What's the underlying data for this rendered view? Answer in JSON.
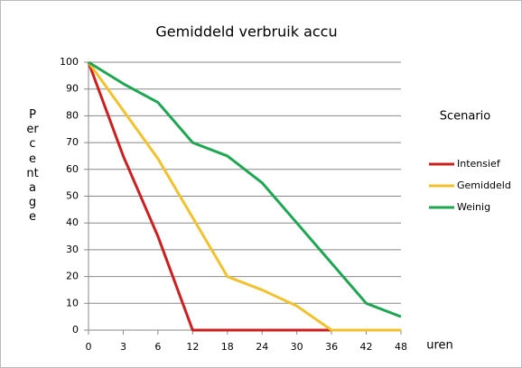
{
  "chart_data": {
    "type": "line",
    "title": "Gemiddeld verbruik accu",
    "x_label": "uren",
    "y_label": "Percentage",
    "legend_title": "Scenario",
    "legend": "right",
    "categories": [
      "0",
      "3",
      "6",
      "12",
      "18",
      "24",
      "30",
      "36",
      "42",
      "48"
    ],
    "series": [
      {
        "name": "Intensief",
        "color": "#cc1f1f",
        "values": [
          100,
          65,
          35,
          0,
          0,
          0,
          0,
          0,
          null,
          null
        ]
      },
      {
        "name": "Gemiddeld",
        "color": "#f2c12e",
        "values": [
          100,
          82,
          64,
          42,
          20,
          15,
          9,
          0,
          0,
          0
        ]
      },
      {
        "name": "Weinig",
        "color": "#1fa652",
        "values": [
          100,
          92,
          85,
          70,
          65,
          55,
          40,
          25,
          10,
          5
        ]
      }
    ],
    "ylim": [
      0,
      100
    ],
    "yticks": [
      0,
      10,
      20,
      30,
      40,
      50,
      60,
      70,
      80,
      90,
      100
    ],
    "grid": true
  }
}
